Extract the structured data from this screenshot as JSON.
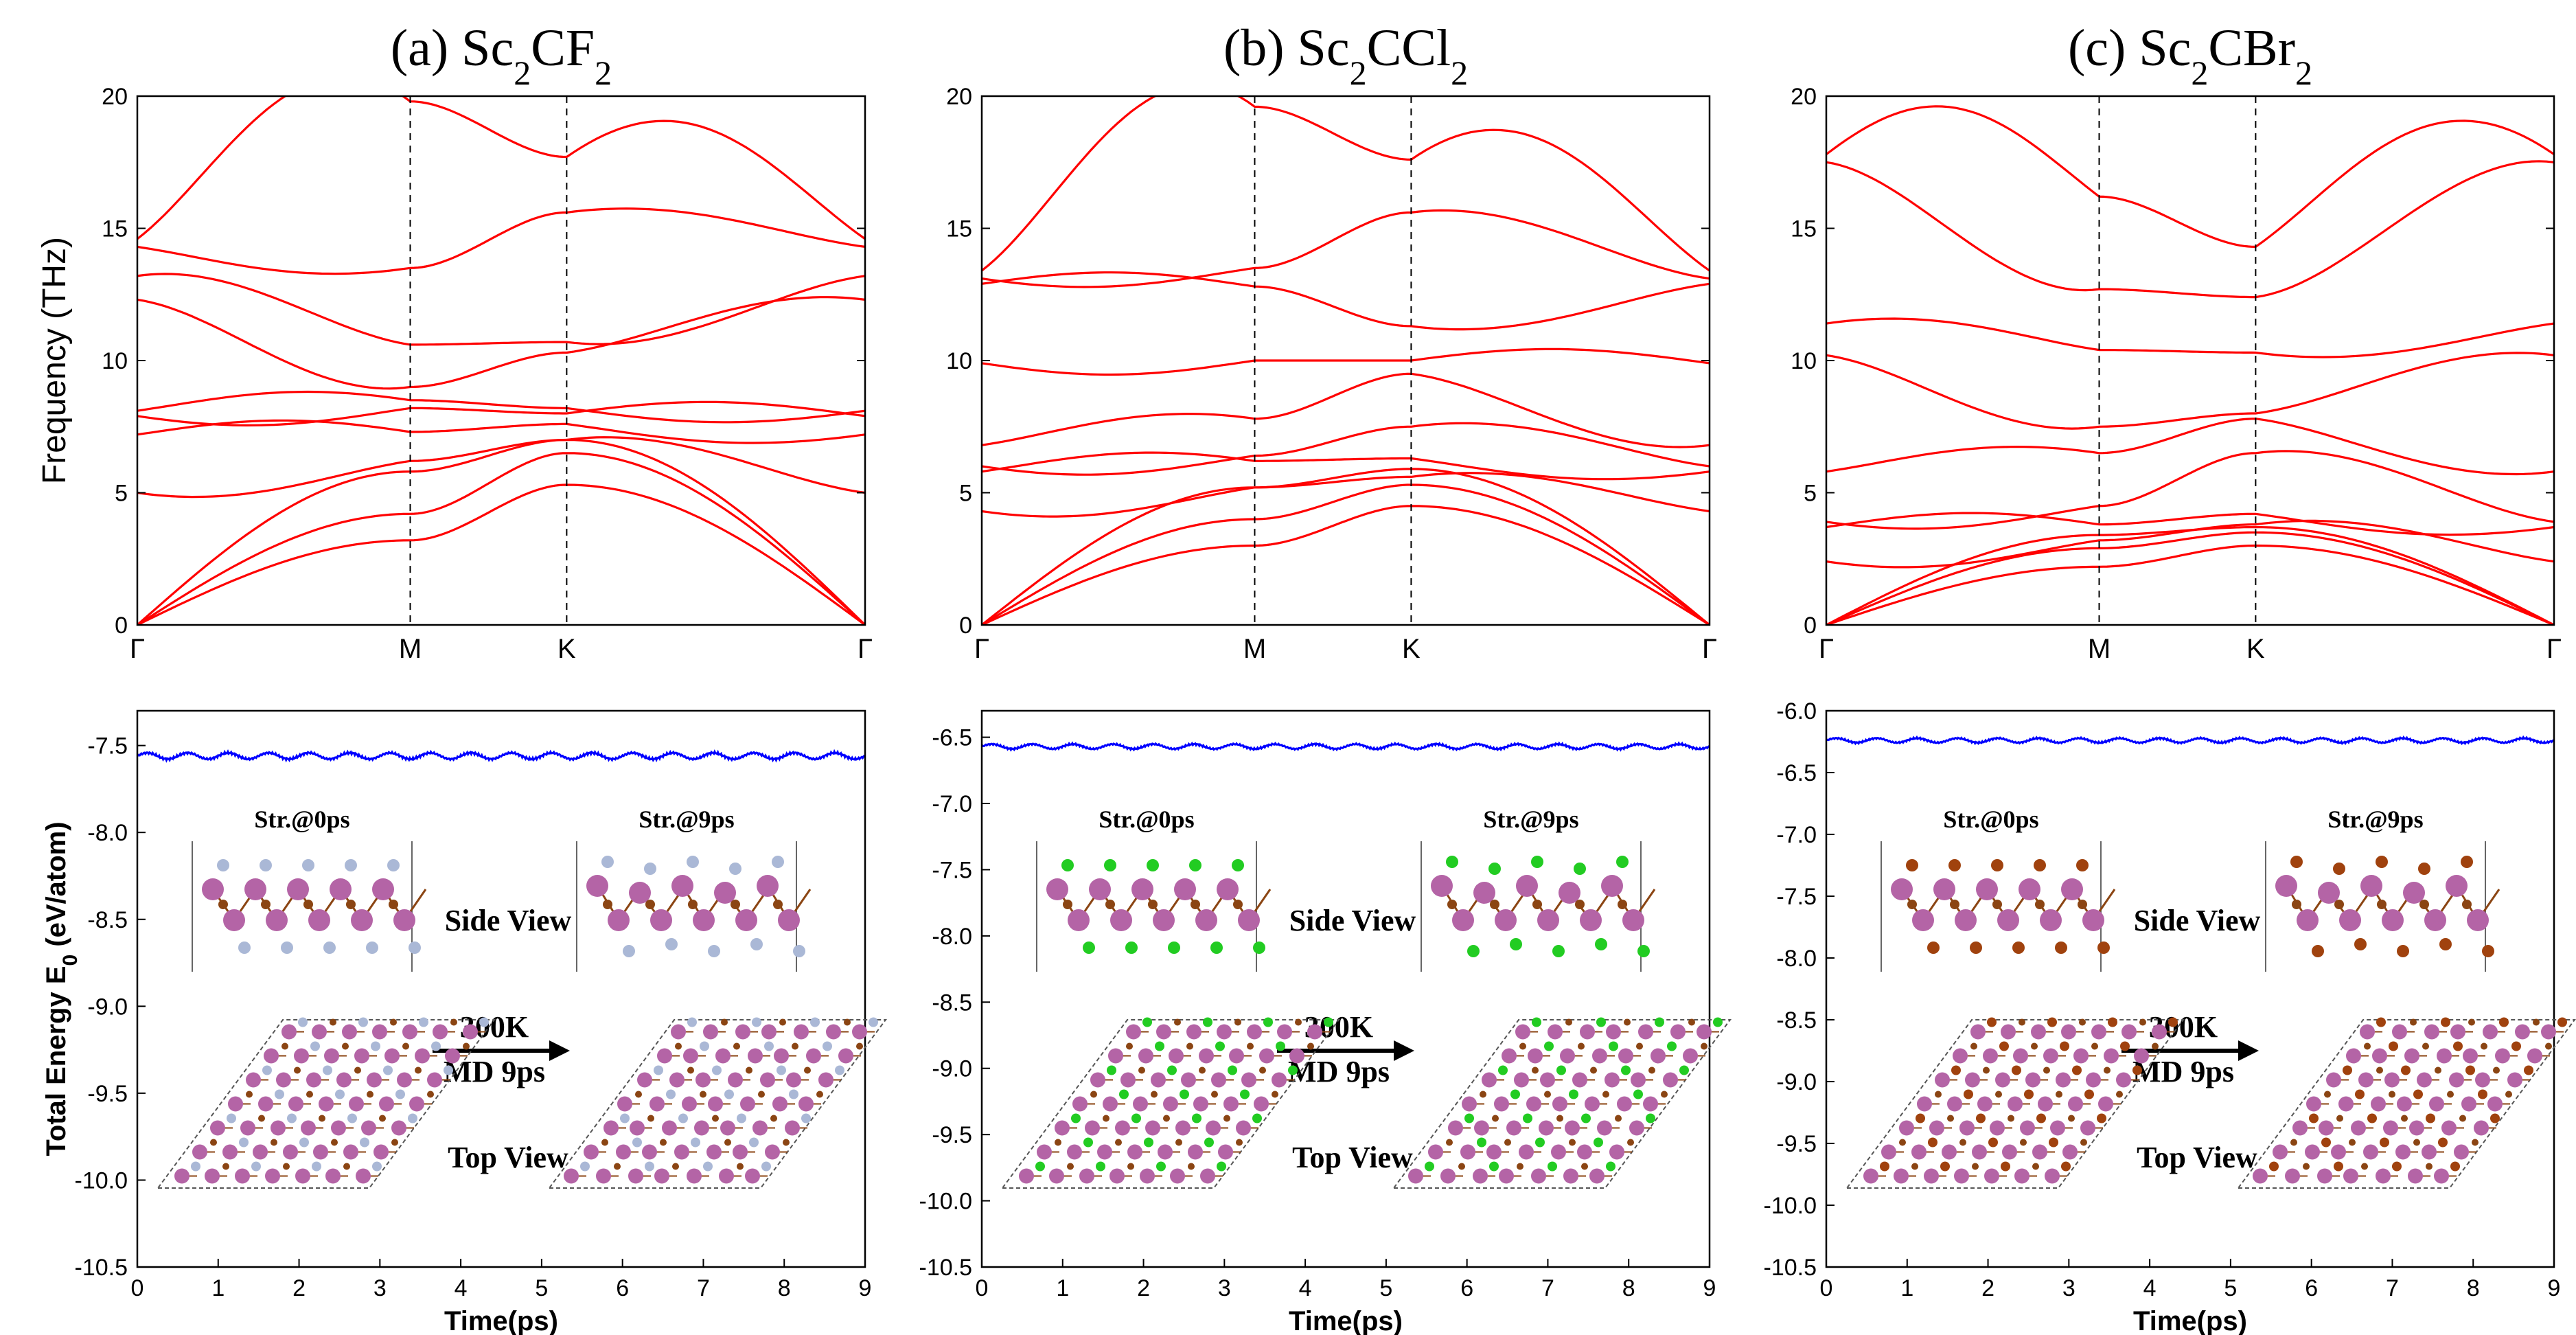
{
  "colors": {
    "band": "#ff0000",
    "energy": "#0000ff",
    "metal_atom": "#b464a6",
    "carbon_atom": "#8b4513",
    "halogen_F": "#aab8d6",
    "halogen_Cl": "#22cc22",
    "halogen_Br": "#a0420e"
  },
  "shared": {
    "phonon_ylabel": "Frequency (THz)",
    "md_ylabel": "Total Energy E",
    "md_ylabel_sub": "0",
    "md_ylabel_unit": " (eV/atom)",
    "md_xlabel": "Time(ps)",
    "q_points": [
      "Γ",
      "M",
      "K",
      "Γ"
    ],
    "annot": {
      "str0": "Str.@0ps",
      "str9": "Str.@9ps",
      "side_view": "Side View",
      "top_view": "Top View",
      "temp": "300K",
      "md_time": "MD 9ps"
    }
  },
  "chart_data": [
    {
      "type": "line",
      "panel": "a",
      "title_prefix": "(a) Sc",
      "title_sub1": "2",
      "title_mid": "CF",
      "title_sub2": "2",
      "phonon": {
        "ylim": [
          0,
          20
        ],
        "yticks": [
          0,
          5,
          10,
          15,
          20
        ],
        "optical_gamma": [
          5.0,
          7.2,
          7.9,
          8.1,
          12.3,
          13.2,
          14.3
        ],
        "optical_M": [
          6.2,
          7.3,
          8.2,
          8.5,
          9.0,
          10.6,
          13.5,
          19.8
        ],
        "optical_K": [
          7.0,
          7.6,
          8.0,
          8.2,
          10.3,
          10.7,
          15.6,
          17.7
        ],
        "acoustic_M": [
          3.2,
          4.2,
          5.8
        ],
        "acoustic_K": [
          5.3,
          6.5,
          7.0
        ]
      },
      "md": {
        "ylim": [
          -10.5,
          -7.3
        ],
        "yticks": [
          -10.5,
          -10.0,
          -9.5,
          -9.0,
          -8.5,
          -8.0,
          -7.5
        ],
        "xlim": [
          0,
          9
        ],
        "xticks": [
          0,
          1,
          2,
          3,
          4,
          5,
          6,
          7,
          8,
          9
        ],
        "mean_energy": -7.56,
        "osc_amplitude": 0.018,
        "osc_period_ps": 0.5
      }
    },
    {
      "type": "line",
      "panel": "b",
      "title_prefix": "(b) Sc",
      "title_sub1": "2",
      "title_mid": "CCl",
      "title_sub2": "2",
      "phonon": {
        "ylim": [
          0,
          20
        ],
        "yticks": [
          0,
          5,
          10,
          15,
          20
        ],
        "optical_gamma": [
          4.3,
          5.8,
          6.0,
          6.8,
          9.9,
          12.9,
          13.1
        ],
        "optical_M": [
          5.2,
          6.2,
          6.4,
          7.8,
          10.0,
          12.8,
          13.5,
          19.6
        ],
        "optical_K": [
          5.6,
          6.3,
          7.5,
          9.5,
          10.0,
          11.3,
          15.6,
          17.6
        ],
        "acoustic_M": [
          3.0,
          4.0,
          5.2
        ],
        "acoustic_K": [
          4.5,
          5.3,
          5.9
        ]
      },
      "md": {
        "ylim": [
          -10.5,
          -6.3
        ],
        "yticks": [
          -10.5,
          -10.0,
          -9.5,
          -9.0,
          -8.5,
          -8.0,
          -7.5,
          -7.0,
          -6.5
        ],
        "xlim": [
          0,
          9
        ],
        "xticks": [
          0,
          1,
          2,
          3,
          4,
          5,
          6,
          7,
          8,
          9
        ],
        "mean_energy": -6.57,
        "osc_amplitude": 0.018,
        "osc_period_ps": 0.5
      }
    },
    {
      "type": "line",
      "panel": "c",
      "title_prefix": "(c) Sc",
      "title_sub1": "2",
      "title_mid": "CBr",
      "title_sub2": "2",
      "phonon": {
        "ylim": [
          0,
          20
        ],
        "yticks": [
          0,
          5,
          10,
          15,
          20
        ],
        "optical_gamma": [
          2.4,
          3.7,
          3.9,
          5.8,
          10.2,
          11.4,
          17.5
        ],
        "optical_M": [
          3.2,
          3.8,
          4.5,
          6.5,
          7.5,
          10.4,
          12.7,
          16.2
        ],
        "optical_K": [
          3.8,
          4.2,
          6.5,
          7.8,
          8.0,
          10.3,
          12.4,
          14.3
        ],
        "acoustic_M": [
          2.2,
          2.9,
          3.4
        ],
        "acoustic_K": [
          3.0,
          3.5,
          3.7
        ]
      },
      "md": {
        "ylim": [
          -10.5,
          -6.0
        ],
        "yticks": [
          -10.5,
          -10.0,
          -9.5,
          -9.0,
          -8.5,
          -8.0,
          -7.5,
          -7.0,
          -6.5,
          -6.0
        ],
        "xlim": [
          0,
          9
        ],
        "xticks": [
          0,
          1,
          2,
          3,
          4,
          5,
          6,
          7,
          8,
          9
        ],
        "mean_energy": -6.24,
        "osc_amplitude": 0.018,
        "osc_period_ps": 0.5
      }
    }
  ]
}
